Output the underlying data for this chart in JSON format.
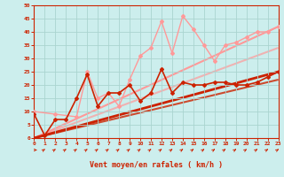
{
  "xlabel": "Vent moyen/en rafales ( km/h )",
  "xlim": [
    0,
    23
  ],
  "ylim": [
    0,
    50
  ],
  "xticks": [
    0,
    1,
    2,
    3,
    4,
    5,
    6,
    7,
    8,
    9,
    10,
    11,
    12,
    13,
    14,
    15,
    16,
    17,
    18,
    19,
    20,
    21,
    22,
    23
  ],
  "yticks": [
    0,
    5,
    10,
    15,
    20,
    25,
    30,
    35,
    40,
    45,
    50
  ],
  "bg_color": "#cceeed",
  "grid_color": "#aad4d0",
  "axis_color": "#cc2200",
  "tick_color": "#cc2200",
  "label_color": "#cc2200",
  "dark_red": "#cc2200",
  "pink": "#ff9999",
  "dark_red_jagged_x": [
    0,
    1,
    2,
    3,
    4,
    5,
    6,
    7,
    8,
    9,
    10,
    11,
    12,
    13,
    14,
    15,
    16,
    17,
    18,
    19,
    20,
    21,
    22,
    23
  ],
  "dark_red_jagged_y": [
    9,
    1,
    7,
    7,
    15,
    24,
    12,
    17,
    17,
    20,
    14,
    17,
    26,
    17,
    21,
    20,
    20,
    21,
    21,
    20,
    20,
    21,
    23,
    25
  ],
  "pink_jagged_x": [
    0,
    2,
    4,
    5,
    6,
    7,
    8,
    9,
    10,
    11,
    12,
    13,
    14,
    15,
    16,
    17,
    18,
    19,
    20,
    21,
    22,
    23
  ],
  "pink_jagged_y": [
    10,
    9,
    8,
    25,
    15,
    17,
    12,
    22,
    31,
    34,
    44,
    32,
    46,
    41,
    35,
    29,
    35,
    36,
    38,
    40,
    40,
    42
  ],
  "trend_lines": [
    {
      "x0": 0,
      "y0": 0,
      "x1": 23,
      "y1": 42,
      "color": "#ff9999",
      "lw": 1.5,
      "alpha": 1.0
    },
    {
      "x0": 0,
      "y0": 0,
      "x1": 23,
      "y1": 34,
      "color": "#ff9999",
      "lw": 1.5,
      "alpha": 0.7
    },
    {
      "x0": 0,
      "y0": 0,
      "x1": 23,
      "y1": 25,
      "color": "#cc2200",
      "lw": 2.0,
      "alpha": 1.0
    },
    {
      "x0": 0,
      "y0": 0,
      "x1": 23,
      "y1": 22,
      "color": "#cc2200",
      "lw": 1.5,
      "alpha": 0.8
    }
  ]
}
